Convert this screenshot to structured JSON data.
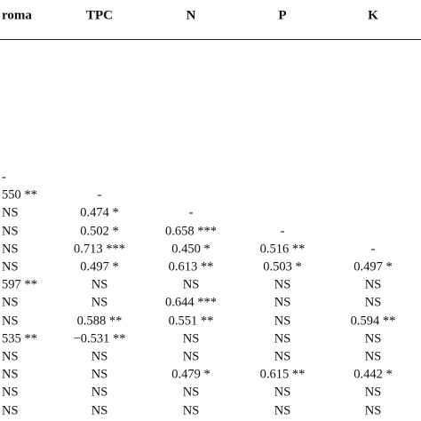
{
  "table": {
    "header": [
      "roma",
      "TPC",
      "N",
      "P",
      "K"
    ],
    "rows": [
      [
        "-"
      ],
      [
        "550 **",
        "-"
      ],
      [
        "NS",
        "0.474 *",
        "-"
      ],
      [
        "NS",
        "0.502 *",
        "0.658 ***",
        "-"
      ],
      [
        "NS",
        "0.713 ***",
        "0.450 *",
        "0.516 **",
        "-"
      ],
      [
        "NS",
        "0.497 *",
        "0.613 **",
        "0.503 *",
        "0.497 *"
      ],
      [
        "597 **",
        "NS",
        "NS",
        "NS",
        "NS"
      ],
      [
        "NS",
        "NS",
        "0.644 ***",
        "NS",
        "NS"
      ],
      [
        "NS",
        "0.588 **",
        "0.551 **",
        "NS",
        "0.594 **"
      ],
      [
        "535 **",
        "−0.531 **",
        "NS",
        "NS",
        "NS"
      ],
      [
        "NS",
        "NS",
        "NS",
        "NS",
        "NS"
      ],
      [
        "NS",
        "NS",
        "0.479 *",
        "0.615 **",
        "0.442 *"
      ],
      [
        "NS",
        "NS",
        "NS",
        "NS",
        "NS"
      ],
      [
        "NS",
        "NS",
        "NS",
        "NS",
        "NS"
      ]
    ]
  }
}
